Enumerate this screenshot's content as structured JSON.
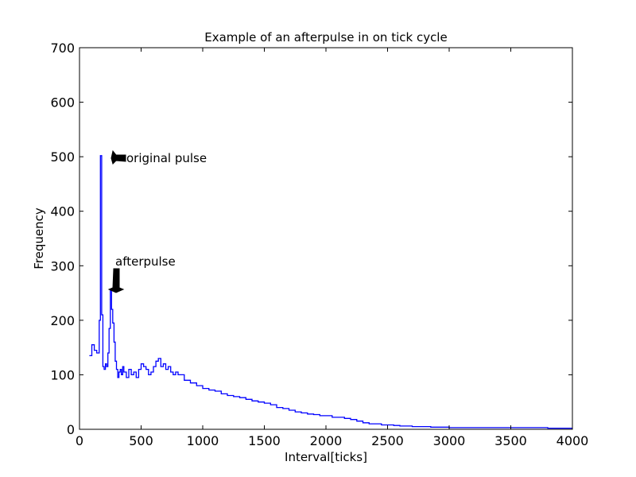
{
  "chart_data": {
    "type": "line",
    "subtype": "step-histogram",
    "title": "Example of an afterpulse in on tick cycle",
    "xlabel": "Interval[ticks]",
    "ylabel": "Frequency",
    "xlim": [
      0,
      4000
    ],
    "ylim": [
      0,
      700
    ],
    "xticks": [
      "0",
      "500",
      "1000",
      "1500",
      "2000",
      "2500",
      "3000",
      "3500",
      "4000"
    ],
    "yticks": [
      "0",
      "100",
      "200",
      "300",
      "400",
      "500",
      "600",
      "700"
    ],
    "grid": false,
    "line_color": "#0000ff",
    "series": [
      {
        "x": [
          80,
          100,
          120,
          140,
          160,
          170,
          180,
          190,
          200,
          210,
          220,
          230,
          240,
          250,
          260,
          270,
          280,
          290,
          300,
          310,
          320,
          330,
          340,
          350,
          360,
          380,
          400,
          420,
          440,
          460,
          480,
          500,
          520,
          540,
          560,
          580,
          600,
          620,
          640,
          660,
          680,
          700,
          720,
          740,
          760,
          780,
          800,
          850,
          900,
          950,
          1000,
          1050,
          1100,
          1150,
          1200,
          1250,
          1300,
          1350,
          1400,
          1450,
          1500,
          1550,
          1600,
          1650,
          1700,
          1750,
          1800,
          1850,
          1900,
          1950,
          2000,
          2050,
          2100,
          2150,
          2200,
          2250,
          2300,
          2350,
          2400,
          2450,
          2500,
          2550,
          2600,
          2650,
          2700,
          2750,
          2800,
          2850,
          2900,
          2950,
          3000,
          3100,
          3200,
          3300,
          3400,
          3500,
          3600,
          3700,
          3800,
          3900,
          4000
        ],
        "y": [
          135,
          155,
          145,
          140,
          200,
          502,
          210,
          115,
          110,
          120,
          115,
          140,
          185,
          255,
          220,
          195,
          160,
          125,
          110,
          95,
          105,
          110,
          100,
          115,
          105,
          95,
          110,
          100,
          105,
          95,
          110,
          120,
          115,
          110,
          100,
          105,
          115,
          125,
          130,
          115,
          120,
          110,
          115,
          105,
          100,
          105,
          100,
          90,
          85,
          80,
          75,
          72,
          70,
          65,
          62,
          60,
          58,
          55,
          52,
          50,
          48,
          45,
          40,
          38,
          35,
          32,
          30,
          28,
          27,
          25,
          25,
          22,
          22,
          20,
          18,
          15,
          12,
          10,
          10,
          8,
          8,
          7,
          6,
          6,
          5,
          5,
          5,
          4,
          4,
          4,
          3,
          3,
          3,
          3,
          3,
          3,
          3,
          3,
          2,
          2,
          2
        ]
      }
    ],
    "annotations": [
      {
        "text": "original pulse",
        "xy": [
          175,
          502
        ],
        "xytext": [
          380,
          490
        ]
      },
      {
        "text": "afterpulse",
        "xy": [
          255,
          250
        ],
        "xytext": [
          280,
          300
        ]
      }
    ]
  }
}
